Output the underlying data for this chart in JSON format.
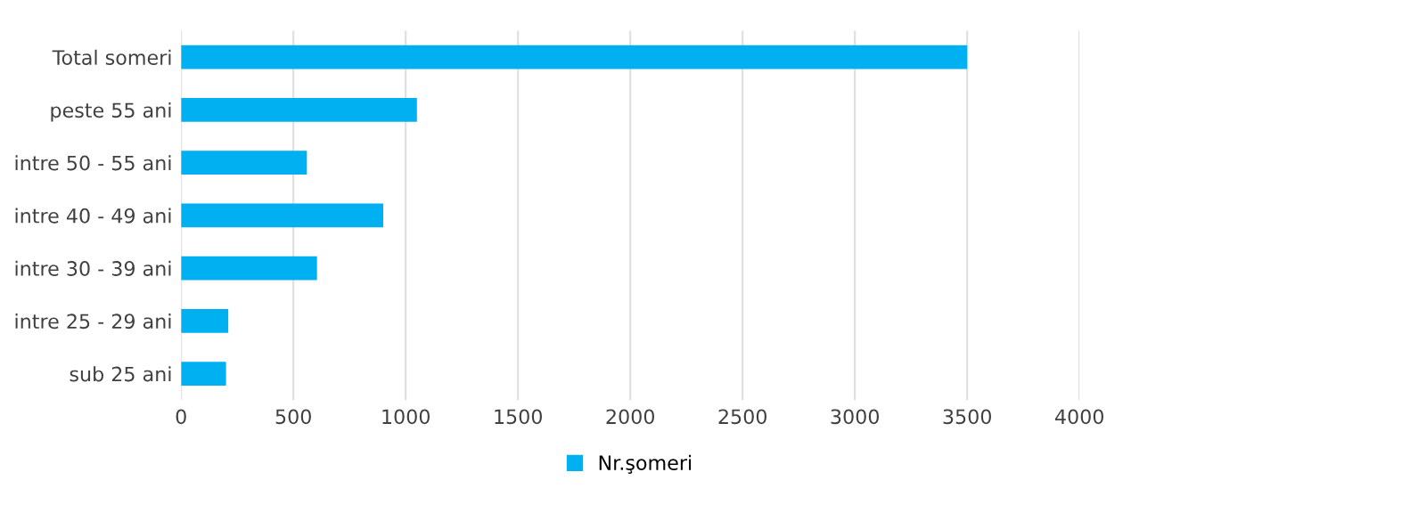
{
  "chart_data": {
    "type": "bar",
    "orientation": "horizontal",
    "categories": [
      "Total someri",
      "peste 55 ani",
      "intre 50 - 55 ani",
      "intre 40 - 49 ani",
      "intre 30 - 39 ani",
      "intre 25 - 29 ani",
      "sub 25 ani"
    ],
    "series": [
      {
        "name": "Nr.şomeri",
        "color": "#00b0f0",
        "values": [
          3500,
          1050,
          560,
          900,
          605,
          210,
          200
        ]
      }
    ],
    "xlim": [
      0,
      4000
    ],
    "xticks": [
      0,
      500,
      1000,
      1500,
      2000,
      2500,
      3000,
      3500,
      4000
    ],
    "grid": "x",
    "legend": "bottom"
  }
}
